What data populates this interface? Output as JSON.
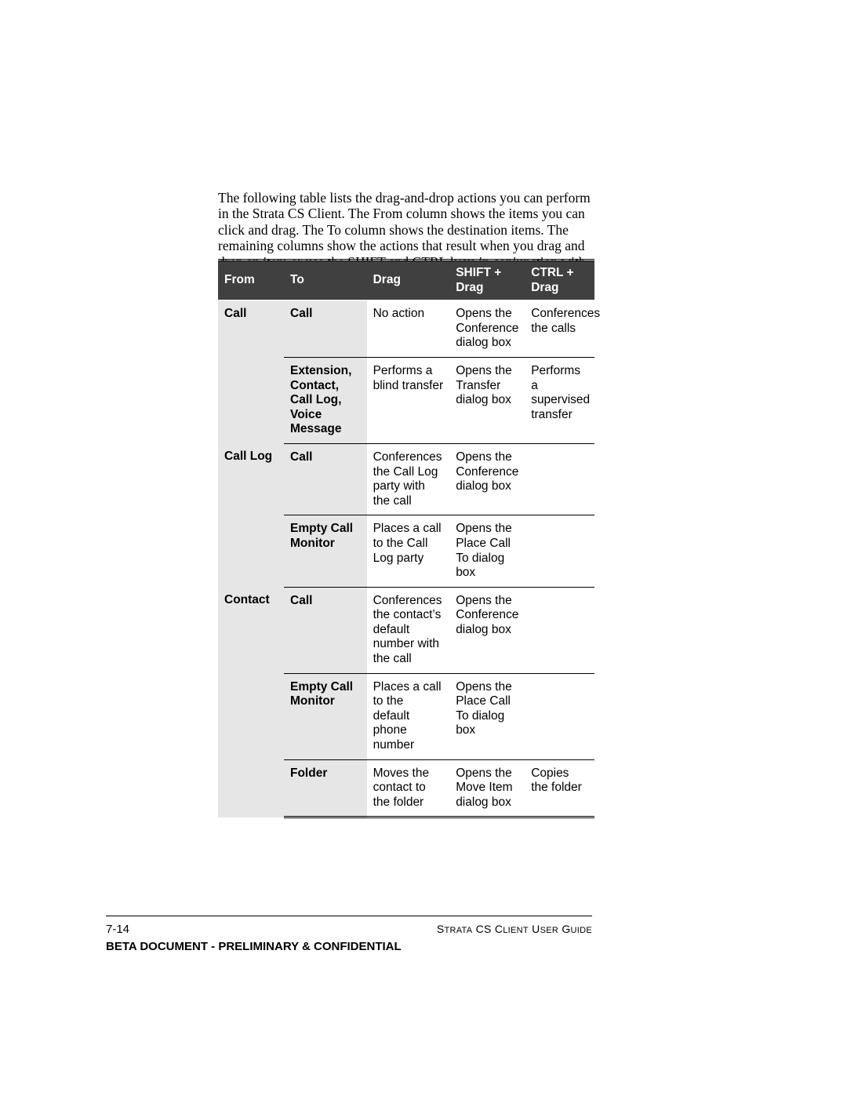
{
  "intro_text": "The following table lists the drag-and-drop actions you can perform in the Strata CS Client. The From column shows the items you can click and drag. The To column shows the destination items. The remaining columns show the actions that result when you drag and drop an item or use the SHIFT and CTRL keys in conjunction with dragging and dropping.",
  "table": {
    "columns": [
      "From",
      "To",
      "Drag",
      "SHIFT + Drag",
      "CTRL + Drag"
    ],
    "header_bg": "#404040",
    "header_fg": "#ffffff",
    "fromto_bg": "#e6e6e6",
    "body_bg": "#ffffff",
    "rule_color": "#000000",
    "font_size_pt": 11.5,
    "rows": [
      {
        "from": "Call",
        "to": "Call",
        "drag": "No action",
        "shift": "Opens the Conference dialog box",
        "ctrl": "Conferences the calls"
      },
      {
        "from": "",
        "to": "Extension, Contact, Call Log, Voice Message",
        "drag": "Performs a blind transfer",
        "shift": "Opens the Transfer dialog box",
        "ctrl": "Performs a supervised transfer"
      },
      {
        "from": "Call Log",
        "to": "Call",
        "drag": "Conferences the Call Log party with the call",
        "shift": "Opens the Conference dialog box",
        "ctrl": ""
      },
      {
        "from": "",
        "to": "Empty Call Monitor",
        "drag": "Places a call to the Call Log party",
        "shift": "Opens the Place Call To dialog box",
        "ctrl": ""
      },
      {
        "from": "Contact",
        "to": "Call",
        "drag": "Conferences the contact’s default number with the call",
        "shift": "Opens the Conference dialog box",
        "ctrl": ""
      },
      {
        "from": "",
        "to": "Empty Call Monitor",
        "drag": "Places a call to the default phone number",
        "shift": "Opens the Place Call To dialog box",
        "ctrl": ""
      },
      {
        "from": "",
        "to": "Folder",
        "drag": "Moves the contact to the folder",
        "shift": "Opens the Move Item dialog box",
        "ctrl": "Copies the folder"
      }
    ]
  },
  "footer": {
    "page_number": "7-14",
    "guide_title_smallcaps": "Strata CS Client User Guide",
    "confidential_line": "BETA DOCUMENT - PRELIMINARY & CONFIDENTIAL"
  }
}
